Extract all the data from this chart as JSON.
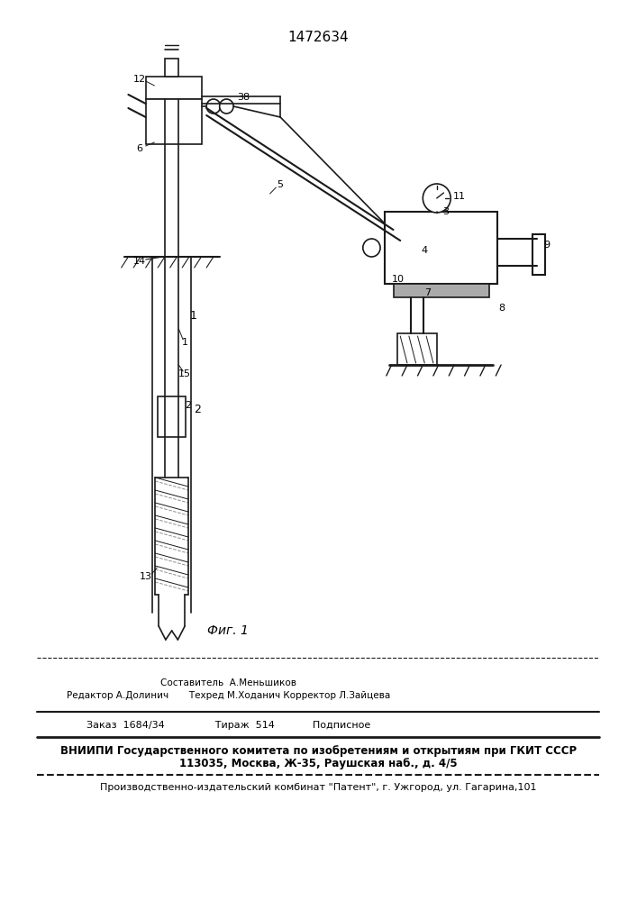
{
  "title": "1472634",
  "fig_label": "Фиг. 1",
  "background_color": "#ffffff",
  "line_color": "#1a1a1a",
  "editor_line1": "Составитель  А.Меньшиков",
  "editor_line2": "Редактор А.Долинич       Техред М.Ходанич Корректор Л.Зайцева",
  "order_line": "Заказ  1684/34                Тираж  514            Подписное",
  "vnipi_line1": "ВНИИПИ Государственного комитета по изобретениям и открытиям при ГКИТ СССР",
  "vnipi_line2": "113035, Москва, Ж-35, Раушская наб., д. 4/5",
  "patent_line": "Производственно-издательский комбинат \"Патент\", г. Ужгород, ул. Гагарина,101"
}
